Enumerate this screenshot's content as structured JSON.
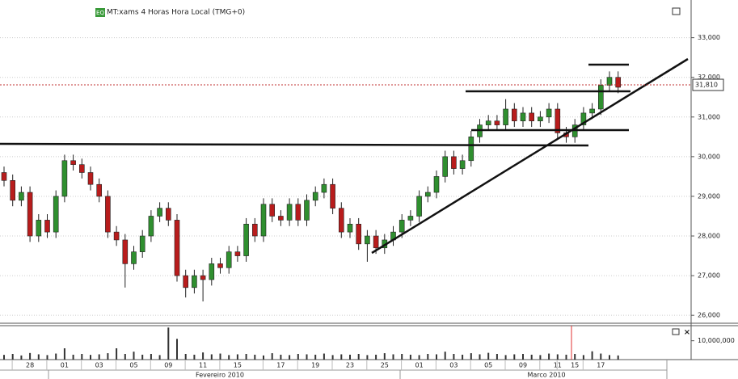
{
  "chart_data": {
    "type": "candlestick",
    "title": "MT:xams 4 Horas Hora Local (TMG+0)",
    "icon_label": "EQ",
    "categories": [
      null,
      null,
      null,
      "28",
      null,
      null,
      null,
      "01",
      null,
      null,
      null,
      "03",
      null,
      null,
      null,
      "05",
      null,
      null,
      null,
      "09",
      null,
      null,
      null,
      "11",
      null,
      null,
      null,
      "15",
      null,
      null,
      null,
      null,
      "17",
      null,
      null,
      null,
      "19",
      null,
      null,
      null,
      "23",
      null,
      null,
      null,
      "25",
      null,
      null,
      null,
      "01",
      null,
      null,
      null,
      "03",
      null,
      null,
      null,
      "05",
      null,
      null,
      null,
      "09",
      null,
      null,
      null,
      "11",
      null,
      "15",
      null,
      null,
      "17",
      null,
      null
    ],
    "month_labels": [
      "Fevereiro 2010",
      "Marco 2010"
    ],
    "open": [
      29600,
      29400,
      28900,
      29100,
      28000,
      28400,
      28100,
      29000,
      29900,
      29800,
      29600,
      29300,
      29000,
      28100,
      27900,
      27300,
      27600,
      28000,
      28500,
      28700,
      28400,
      27000,
      26700,
      27000,
      26900,
      27300,
      27200,
      27600,
      27500,
      28300,
      28000,
      28800,
      28500,
      28400,
      28800,
      28400,
      28900,
      29100,
      29300,
      28700,
      28100,
      28300,
      27800,
      28000,
      27700,
      27900,
      28100,
      28400,
      28500,
      29000,
      29100,
      29500,
      30000,
      29700,
      29900,
      30500,
      30800,
      30900,
      30800,
      31200,
      30900,
      31100,
      30900,
      31000,
      31200,
      30600,
      30500,
      30800,
      31100,
      31200,
      31800,
      32000
    ],
    "high": [
      29750,
      29550,
      29250,
      29250,
      28550,
      28550,
      29150,
      30050,
      30050,
      29950,
      29750,
      29450,
      29150,
      28250,
      28050,
      27750,
      28150,
      28650,
      28850,
      28850,
      28550,
      27150,
      27150,
      27150,
      27450,
      27450,
      27750,
      27750,
      28450,
      28450,
      28950,
      28950,
      28650,
      28950,
      28950,
      29050,
      29250,
      29450,
      29450,
      28850,
      28450,
      28450,
      28150,
      28150,
      28050,
      28250,
      28550,
      28650,
      29150,
      29250,
      29650,
      30150,
      30150,
      30050,
      30650,
      30950,
      31050,
      31050,
      31450,
      31350,
      31250,
      31250,
      31150,
      31350,
      31350,
      30750,
      30950,
      31250,
      31350,
      31950,
      32150,
      32150
    ],
    "low": [
      29250,
      28750,
      28750,
      27850,
      27850,
      27950,
      27950,
      28850,
      29650,
      29450,
      29150,
      28850,
      27950,
      27750,
      26700,
      27150,
      27450,
      27850,
      28350,
      28250,
      26850,
      26450,
      26550,
      26350,
      26750,
      27050,
      27050,
      27350,
      27350,
      27850,
      27850,
      28350,
      28250,
      28250,
      28250,
      28250,
      28750,
      28950,
      28550,
      27950,
      27950,
      27650,
      27350,
      27550,
      27550,
      27750,
      27950,
      28250,
      28350,
      28850,
      28950,
      29350,
      29550,
      29550,
      29750,
      30350,
      30650,
      30650,
      30650,
      30750,
      30750,
      30750,
      30750,
      30850,
      30450,
      30350,
      30350,
      30650,
      30950,
      31050,
      31650,
      31600
    ],
    "close": [
      29400,
      28900,
      29100,
      28000,
      28400,
      28100,
      29000,
      29900,
      29800,
      29600,
      29300,
      29000,
      28100,
      27900,
      27300,
      27600,
      28000,
      28500,
      28700,
      28400,
      27000,
      26700,
      27000,
      26900,
      27300,
      27200,
      27600,
      27500,
      28300,
      28000,
      28800,
      28500,
      28400,
      28800,
      28400,
      28900,
      29100,
      29300,
      28700,
      28100,
      28300,
      27800,
      28000,
      27700,
      27900,
      28100,
      28400,
      28500,
      29000,
      29100,
      29500,
      30000,
      29700,
      29900,
      30500,
      30800,
      30900,
      30800,
      31200,
      30900,
      31100,
      30900,
      31000,
      31200,
      30600,
      30500,
      30800,
      31100,
      31200,
      31800,
      32000,
      31750
    ],
    "volume": [
      2500000,
      3000000,
      2200000,
      3500000,
      2800000,
      2400000,
      3200000,
      6000000,
      2600000,
      3000000,
      2500000,
      2800000,
      3400000,
      6000000,
      3000000,
      4200000,
      2600000,
      3000000,
      2400000,
      17000000,
      11000000,
      3000000,
      2600000,
      3800000,
      2800000,
      3200000,
      2400000,
      2800000,
      3000000,
      2600000,
      2200000,
      3400000,
      2600000,
      2400000,
      3000000,
      2800000,
      2600000,
      3200000,
      2400000,
      2800000,
      2600000,
      3000000,
      2400000,
      2600000,
      3400000,
      2800000,
      3000000,
      2600000,
      2400000,
      3000000,
      2800000,
      4200000,
      3000000,
      2600000,
      3400000,
      2800000,
      3600000,
      3000000,
      2400000,
      2800000,
      3000000,
      2600000,
      2400000,
      3200000,
      2800000,
      2600000,
      3000000,
      2400000,
      4400000,
      3200000,
      2400000,
      2200000
    ],
    "up_color": "#2f8f2f",
    "down_color": "#b81c1c",
    "ylim": [
      25800,
      33950
    ],
    "yticks": [
      {
        "value": 26000,
        "label": "26,000"
      },
      {
        "value": 27000,
        "label": "27,000"
      },
      {
        "value": 28000,
        "label": "28,000"
      },
      {
        "value": 29000,
        "label": "29,000"
      },
      {
        "value": 30000,
        "label": "30,000"
      },
      {
        "value": 31000,
        "label": "31,000"
      },
      {
        "value": 32000,
        "label": "32,000"
      },
      {
        "value": 33000,
        "label": "33,000"
      }
    ],
    "volume_lim": [
      0,
      18000000
    ],
    "volume_ticks": [
      {
        "value": 10000000,
        "label": "10,000,000"
      }
    ],
    "current_price": {
      "value": 31810,
      "label": "31,810"
    },
    "grid": true
  }
}
